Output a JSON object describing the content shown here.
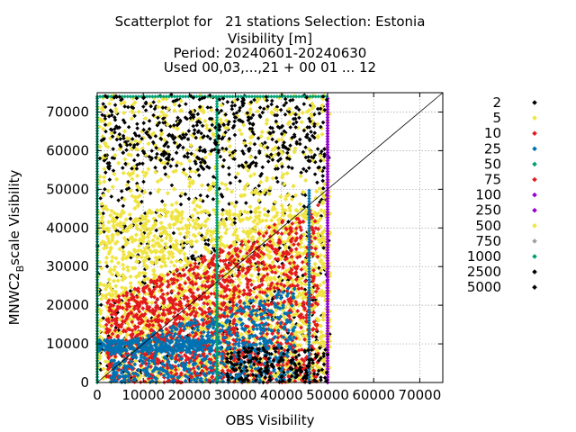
{
  "chart_data": {
    "type": "scatter",
    "title_lines": [
      "Scatterplot for   21 stations Selection: Estonia",
      "Visibility [m]",
      "Period: 20240601-20240630",
      "Used 00,03,...,21 + 00 01 ... 12"
    ],
    "xlabel": "OBS Visibility",
    "ylabel_main": "MNWC2",
    "ylabel_sub": "B",
    "ylabel_rest": "scale Visibility",
    "xlim": [
      0,
      75000
    ],
    "ylim": [
      0,
      75000
    ],
    "x_ticks": [
      "0",
      "10000",
      "20000",
      "30000",
      "40000",
      "50000",
      "60000",
      "70000"
    ],
    "y_ticks": [
      "0",
      "10000",
      "20000",
      "30000",
      "40000",
      "50000",
      "60000",
      "70000"
    ],
    "grid": true,
    "legend_placement": "right",
    "series": [
      {
        "name": "2",
        "color": "#000000"
      },
      {
        "name": "5",
        "color": "#f0e442"
      },
      {
        "name": "10",
        "color": "#e31a1c"
      },
      {
        "name": "25",
        "color": "#0072b2"
      },
      {
        "name": "50",
        "color": "#009e73"
      },
      {
        "name": "75",
        "color": "#e31a1c"
      },
      {
        "name": "100",
        "color": "#9400d3"
      },
      {
        "name": "250",
        "color": "#9400d3"
      },
      {
        "name": "500",
        "color": "#f0e442"
      },
      {
        "name": "750",
        "color": "#a0a0a0"
      },
      {
        "name": "1000",
        "color": "#009e73"
      },
      {
        "name": "2500",
        "color": "#000000"
      },
      {
        "name": "5000",
        "color": "#000000"
      }
    ],
    "diagonal": true
  }
}
